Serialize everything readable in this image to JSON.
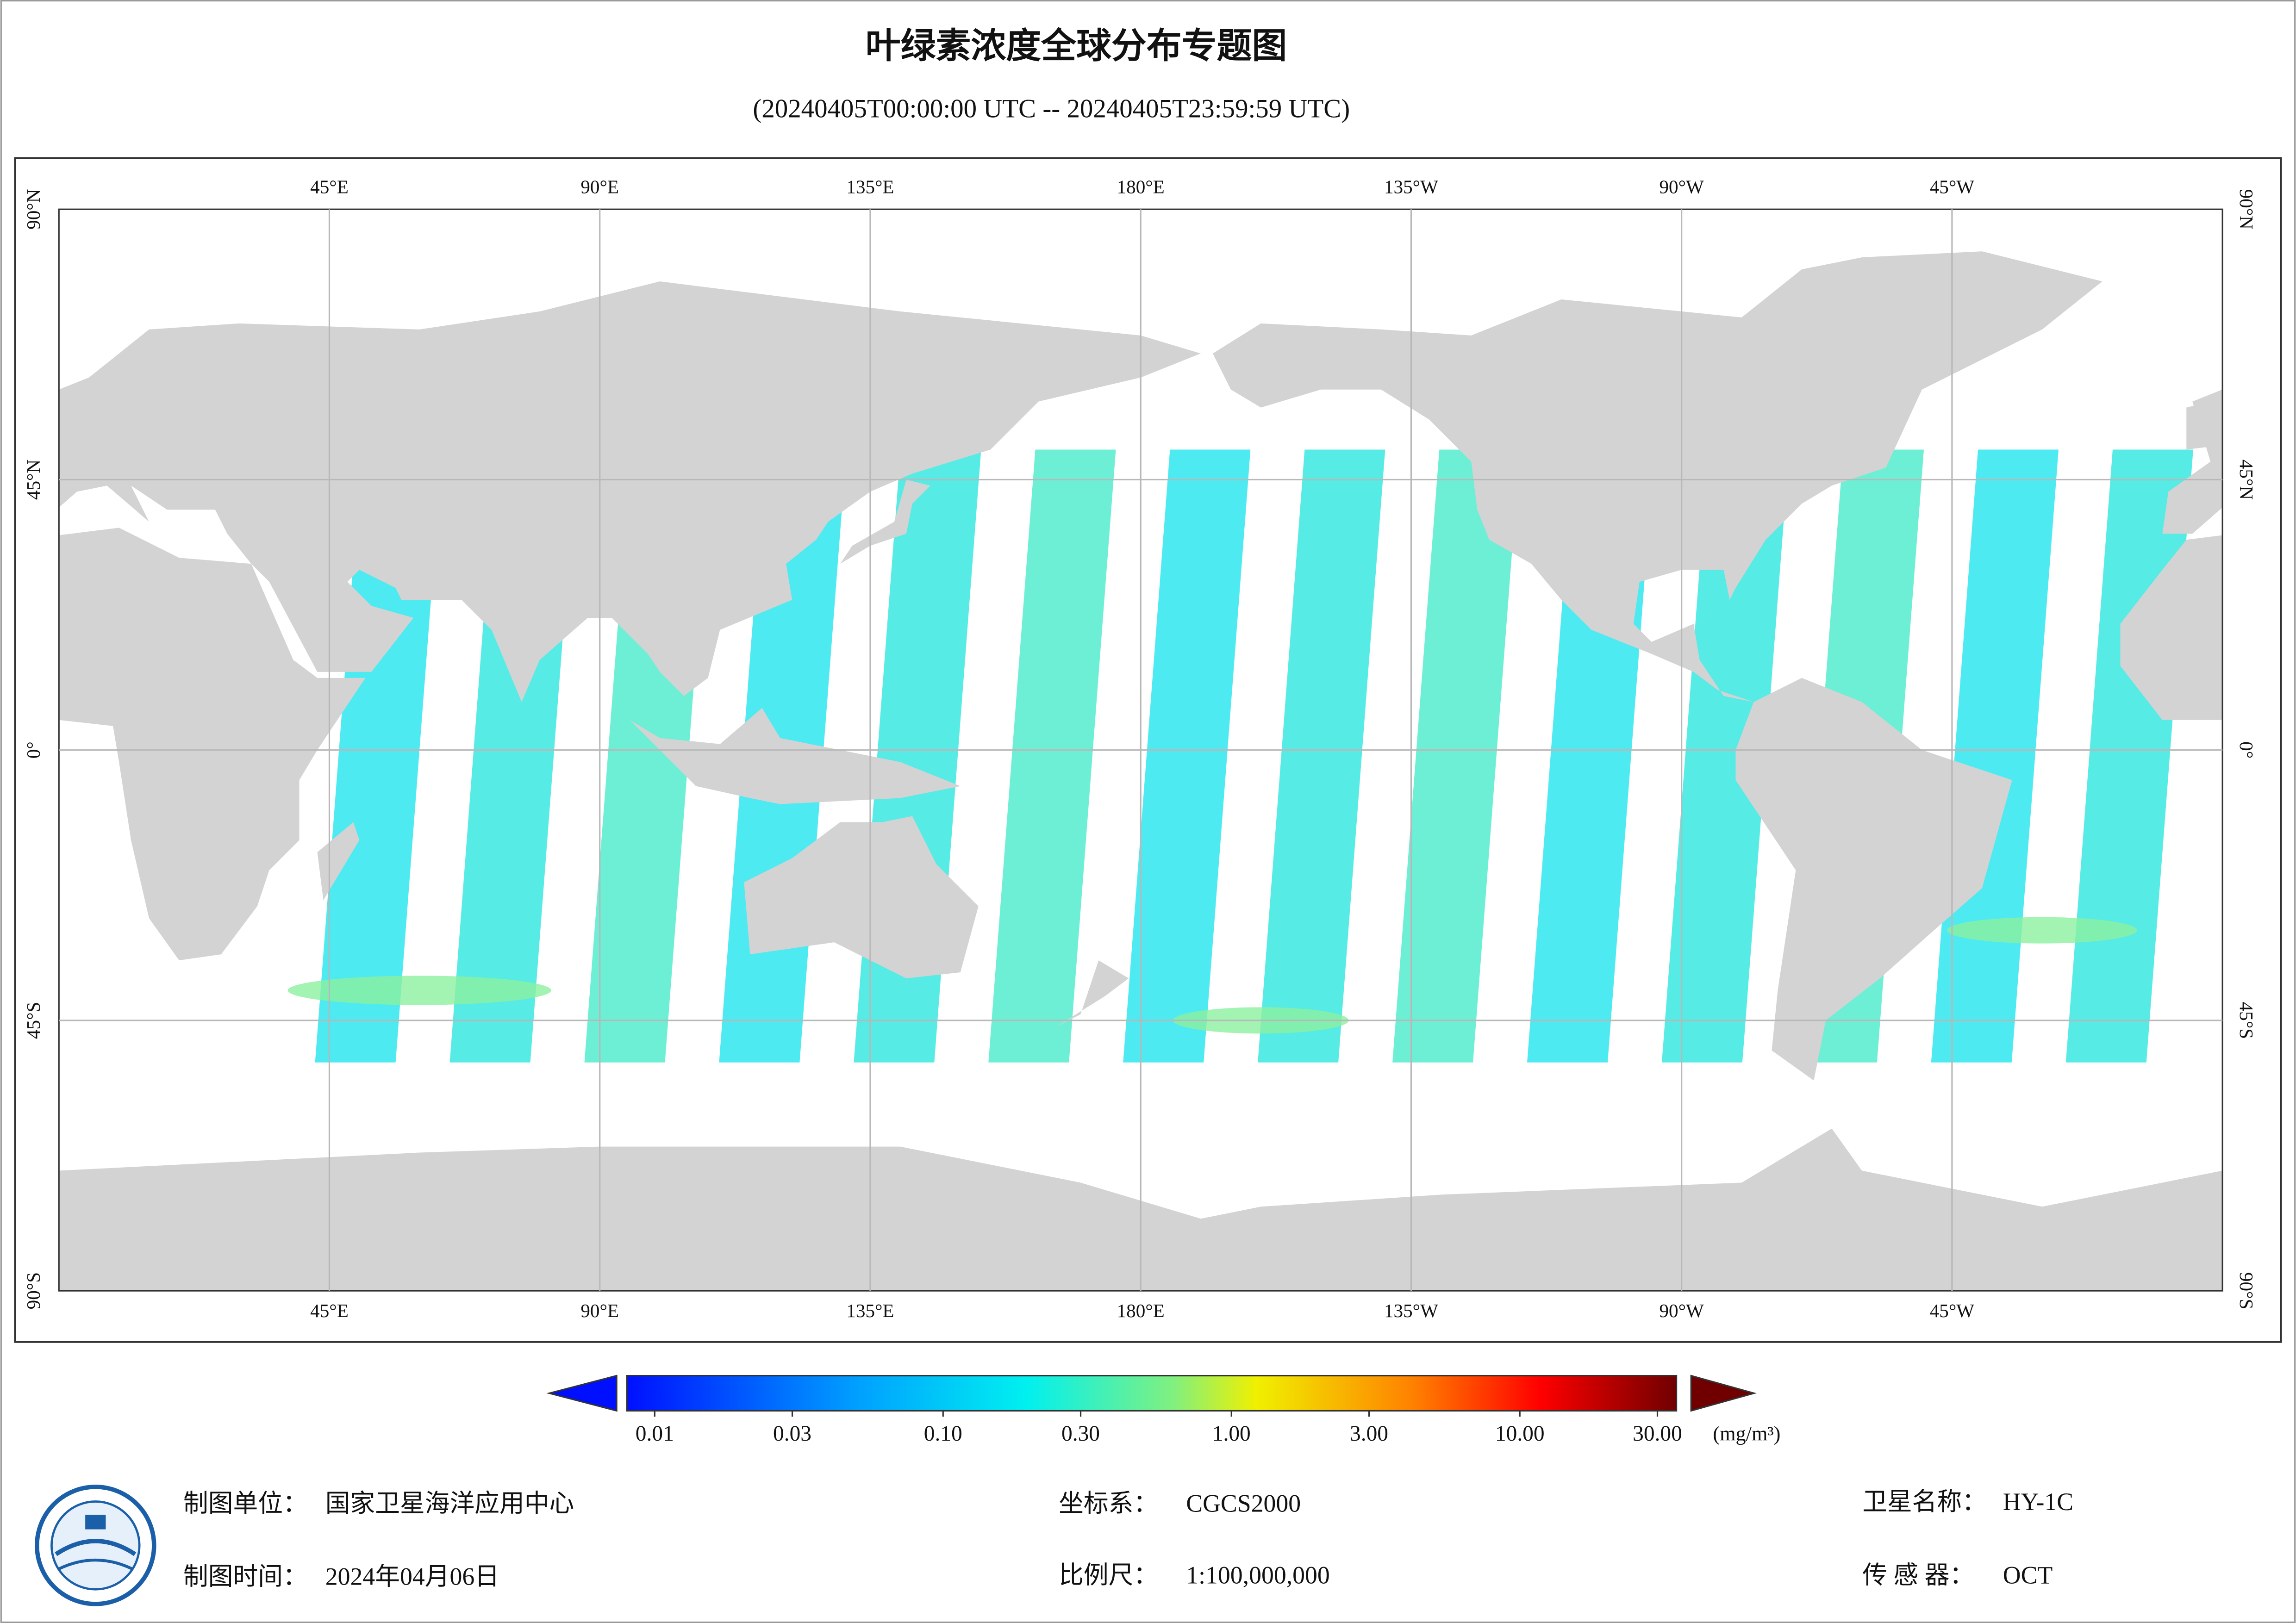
{
  "header": {
    "title": "叶绿素浓度全球分布专题图",
    "subtitle": "(20240405T00:00:00 UTC -- 20240405T23:59:59 UTC)"
  },
  "map": {
    "lon_labels": [
      "45°E",
      "90°E",
      "135°E",
      "180°E",
      "135°W",
      "90°W",
      "45°W"
    ],
    "lat_labels": [
      "90°N",
      "45°N",
      "0°",
      "45°S",
      "90°S"
    ]
  },
  "colorbar": {
    "ticks": [
      0.01,
      0.03,
      {
        "value": 0.1,
        "label": "0.10"
      },
      {
        "value": 0.3,
        "label": "0.30"
      },
      {
        "value": 1,
        "label": "1.00"
      },
      {
        "value": 3,
        "label": "3.00"
      },
      {
        "value": 10,
        "label": "10.00"
      },
      {
        "value": 30,
        "label": "30.00"
      }
    ],
    "unit": "(mg/m³)"
  },
  "footer": {
    "unit_label": "制图单位：",
    "unit": "国家卫星海洋应用中心",
    "date_label": "制图时间：",
    "date": "2024年04月06日",
    "crs_label": "坐标系：",
    "crs": "CGCS2000",
    "scale_label": "比例尺：",
    "scale": "1:100,000,000",
    "satellite_label": "卫星名称：",
    "satellite": "HY-1C",
    "sensor_label": "传 感 器：",
    "sensor": "OCT"
  }
}
